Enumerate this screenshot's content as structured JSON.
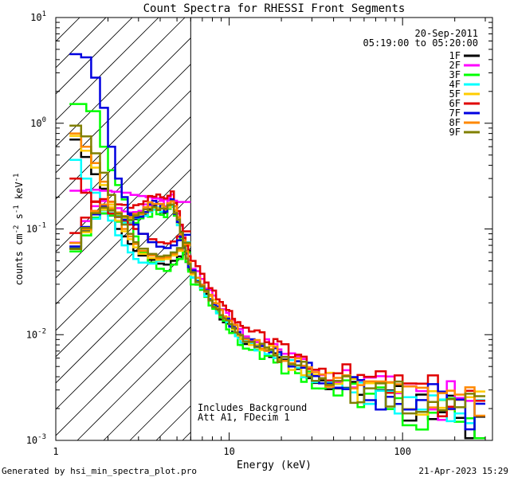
{
  "chart_data": {
    "type": "line",
    "title": "Count Spectra for RHESSI Front Segments",
    "xlabel": "Energy (keV)",
    "ylabel_parts": [
      "counts cm",
      "-2",
      " s",
      "-1",
      " keV",
      "-1"
    ],
    "xscale": "log",
    "yscale": "log",
    "xlim": [
      1,
      330
    ],
    "ylim": [
      0.001,
      10
    ],
    "xticks": [
      {
        "v": 1,
        "label": "1"
      },
      {
        "v": 10,
        "label": "10"
      },
      {
        "v": 100,
        "label": "100"
      }
    ],
    "yticks": [
      {
        "v": 0.001,
        "base": "10",
        "exp": "-3"
      },
      {
        "v": 0.01,
        "base": "10",
        "exp": "-2"
      },
      {
        "v": 0.1,
        "base": "10",
        "exp": "-1"
      },
      {
        "v": 1,
        "base": "10",
        "exp": "0"
      },
      {
        "v": 10,
        "base": "10",
        "exp": "1"
      }
    ],
    "date": "20-Sep-2011",
    "time_range": "05:19:00 to 05:20:00",
    "annotations": [
      "Includes Background",
      "Att A1, FDecim 1"
    ],
    "hatched_below_keV": 6,
    "shape_edges": [
      1.2,
      1.4,
      1.6,
      1.8,
      2.0,
      2.2,
      2.4,
      2.6,
      2.8,
      3.0,
      3.2,
      3.4,
      3.6,
      3.8,
      4.0,
      4.2,
      4.4,
      4.6,
      4.8,
      5.0,
      5.2,
      5.4,
      5.6,
      5.8,
      6.0,
      6.4,
      6.8,
      7.2,
      7.6,
      8.0,
      8.4,
      8.8,
      9.2,
      9.6,
      10.0,
      10.4,
      10.8,
      11.2,
      11.6,
      12,
      13,
      14,
      15,
      16,
      17,
      18,
      19,
      20,
      22,
      24,
      26,
      28,
      30,
      33,
      36,
      40,
      45,
      50,
      55,
      60,
      70,
      80,
      90,
      100,
      120,
      140,
      160,
      180,
      200,
      230,
      260,
      300
    ],
    "series": [
      {
        "name": "1F",
        "color": "#000000",
        "scale": 0.92,
        "jitter": 0.06,
        "seed": 11,
        "low": {
          "edges": [
            1.2,
            1.4,
            1.6,
            1.8,
            2.0,
            2.2,
            2.4,
            2.6,
            2.8,
            3.0,
            3.4,
            3.8,
            4.2,
            4.6,
            5.0,
            5.4,
            6.0
          ],
          "values": [
            0.7,
            0.48,
            0.33,
            0.24,
            0.15,
            0.1,
            0.085,
            0.072,
            0.062,
            0.056,
            0.051,
            0.047,
            0.046,
            0.05,
            0.055,
            0.062
          ]
        }
      },
      {
        "name": "2F",
        "color": "#ff00ff",
        "scale": 1.12,
        "jitter": 0.07,
        "seed": 23,
        "low": {
          "edges": [
            1.2,
            1.5,
            1.8,
            2.1,
            2.4,
            2.7,
            3.0,
            3.3,
            3.6,
            4.0,
            4.5,
            5.0,
            5.5,
            6.0
          ],
          "values": [
            0.23,
            0.235,
            0.23,
            0.225,
            0.22,
            0.21,
            0.205,
            0.2,
            0.195,
            0.19,
            0.185,
            0.18,
            0.18
          ]
        }
      },
      {
        "name": "3F",
        "color": "#00ff00",
        "scale": 0.85,
        "jitter": 0.08,
        "seed": 37,
        "low": {
          "edges": [
            1.2,
            1.5,
            1.8,
            2.0,
            2.2,
            2.4,
            2.6,
            2.8,
            3.0,
            3.4,
            3.8,
            4.2,
            4.6,
            5.0,
            5.4,
            6.0
          ],
          "values": [
            1.52,
            1.3,
            0.6,
            0.36,
            0.26,
            0.19,
            0.12,
            0.085,
            0.06,
            0.048,
            0.042,
            0.04,
            0.046,
            0.052,
            0.06
          ]
        }
      },
      {
        "name": "4F",
        "color": "#00ffff",
        "scale": 0.93,
        "jitter": 0.06,
        "seed": 41,
        "low": {
          "edges": [
            1.2,
            1.4,
            1.6,
            1.8,
            2.0,
            2.2,
            2.4,
            2.6,
            2.8,
            3.0,
            3.4,
            3.8,
            4.2,
            4.6,
            5.0,
            5.4,
            6.0
          ],
          "values": [
            0.45,
            0.3,
            0.22,
            0.17,
            0.12,
            0.087,
            0.07,
            0.06,
            0.052,
            0.048,
            0.047,
            0.05,
            0.055,
            0.06,
            0.066,
            0.075
          ]
        }
      },
      {
        "name": "5F",
        "color": "#ffcc00",
        "scale": 1.0,
        "jitter": 0.07,
        "seed": 53,
        "low": {
          "edges": [
            1.2,
            1.4,
            1.6,
            1.8,
            2.0,
            2.2,
            2.4,
            2.6,
            2.8,
            3.0,
            3.4,
            3.8,
            4.2,
            4.6,
            5.0,
            5.4,
            6.0
          ],
          "values": [
            0.76,
            0.55,
            0.38,
            0.26,
            0.17,
            0.12,
            0.095,
            0.08,
            0.067,
            0.058,
            0.053,
            0.051,
            0.052,
            0.056,
            0.062,
            0.07
          ]
        }
      },
      {
        "name": "6F",
        "color": "#e00000",
        "scale": 1.25,
        "jitter": 0.06,
        "seed": 67,
        "low": {
          "edges": [
            1.2,
            1.4,
            1.6,
            1.8,
            2.0,
            2.2,
            2.4,
            2.6,
            2.8,
            3.0,
            3.4,
            3.8,
            4.2,
            4.6,
            5.0,
            5.4,
            6.0
          ],
          "values": [
            0.3,
            0.22,
            0.18,
            0.16,
            0.14,
            0.13,
            0.12,
            0.11,
            0.1,
            0.09,
            0.08,
            0.075,
            0.073,
            0.076,
            0.085,
            0.095
          ]
        }
      },
      {
        "name": "7F",
        "color": "#0000e0",
        "scale": 1.0,
        "jitter": 0.09,
        "seed": 79,
        "low": {
          "edges": [
            1.2,
            1.4,
            1.6,
            1.8,
            2.0,
            2.2,
            2.4,
            2.6,
            2.8,
            3.0,
            3.4,
            3.8,
            4.2,
            4.6,
            5.0,
            5.4,
            6.0
          ],
          "values": [
            4.5,
            4.2,
            2.7,
            1.4,
            0.6,
            0.3,
            0.2,
            0.14,
            0.11,
            0.09,
            0.075,
            0.068,
            0.066,
            0.07,
            0.078,
            0.088
          ]
        }
      },
      {
        "name": "8F",
        "color": "#ff8800",
        "scale": 1.05,
        "jitter": 0.07,
        "seed": 83,
        "low": {
          "edges": [
            1.2,
            1.4,
            1.6,
            1.8,
            2.0,
            2.2,
            2.4,
            2.6,
            2.8,
            3.0,
            3.4,
            3.8,
            4.2,
            4.6,
            5.0,
            5.4,
            6.0
          ],
          "values": [
            0.8,
            0.6,
            0.42,
            0.28,
            0.18,
            0.13,
            0.1,
            0.085,
            0.072,
            0.062,
            0.056,
            0.053,
            0.054,
            0.058,
            0.064,
            0.072
          ]
        }
      },
      {
        "name": "9F",
        "color": "#808000",
        "scale": 0.98,
        "jitter": 0.07,
        "seed": 97,
        "low": {
          "edges": [
            1.2,
            1.4,
            1.6,
            1.8,
            2.0,
            2.2,
            2.4,
            2.6,
            2.8,
            3.0,
            3.4,
            3.8,
            4.2,
            4.6,
            5.0,
            5.4,
            6.0
          ],
          "values": [
            0.95,
            0.75,
            0.52,
            0.34,
            0.21,
            0.14,
            0.11,
            0.09,
            0.075,
            0.065,
            0.058,
            0.055,
            0.056,
            0.06,
            0.066,
            0.074
          ]
        }
      }
    ],
    "shape_values": [
      0.07,
      0.1,
      0.14,
      0.16,
      0.15,
      0.14,
      0.13,
      0.125,
      0.13,
      0.14,
      0.15,
      0.16,
      0.17,
      0.165,
      0.16,
      0.155,
      0.17,
      0.18,
      0.15,
      0.12,
      0.09,
      0.07,
      0.056,
      0.046,
      0.038,
      0.034,
      0.03,
      0.026,
      0.023,
      0.02,
      0.018,
      0.016,
      0.015,
      0.014,
      0.013,
      0.012,
      0.011,
      0.01,
      0.0095,
      0.009,
      0.0085,
      0.0082,
      0.0078,
      0.0074,
      0.007,
      0.0066,
      0.0062,
      0.0058,
      0.0055,
      0.0052,
      0.0049,
      0.0046,
      0.0043,
      0.004,
      0.0038,
      0.0036,
      0.0034,
      0.0032,
      0.0031,
      0.003,
      0.0029,
      0.0028,
      0.0027,
      0.0026,
      0.0025,
      0.0024,
      0.0023,
      0.0022,
      0.0021,
      0.002,
      0.0019
    ]
  },
  "footer": {
    "generated_by": "Generated by hsi_min_spectra_plot.pro",
    "timestamp": "21-Apr-2023 15:29"
  }
}
